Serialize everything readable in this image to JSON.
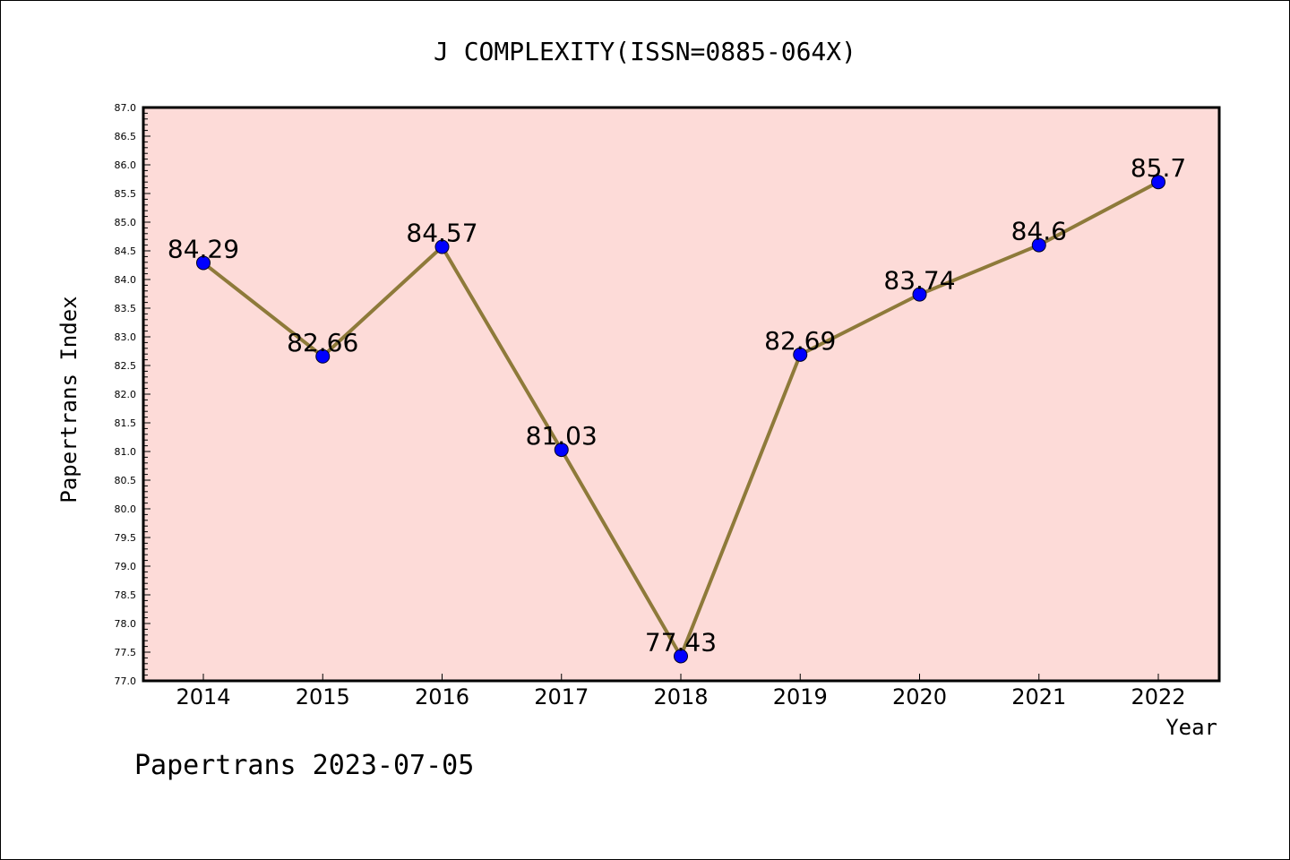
{
  "chart_data": {
    "type": "line",
    "title": "J COMPLEXITY(ISSN=0885-064X)",
    "xlabel": "Year",
    "ylabel": "Papertrans Index",
    "footer": "Papertrans 2023-07-05",
    "categories": [
      "2014",
      "2015",
      "2016",
      "2017",
      "2018",
      "2019",
      "2020",
      "2021",
      "2022"
    ],
    "series": [
      {
        "values": [
          84.29,
          82.66,
          84.57,
          81.03,
          77.43,
          82.69,
          83.74,
          84.6,
          85.7
        ],
        "labels": [
          "84.29",
          "82.66",
          "84.57",
          "81.03",
          "77.43",
          "82.69",
          "83.74",
          "84.6",
          "85.7"
        ]
      }
    ],
    "ylim": [
      77.0,
      87.0
    ],
    "ytick_step": 0.5,
    "grid": false,
    "legend": "none",
    "colors": {
      "plot_background": "#fddbd8",
      "line": "#8e7a3a",
      "marker": "#0000ff"
    }
  }
}
